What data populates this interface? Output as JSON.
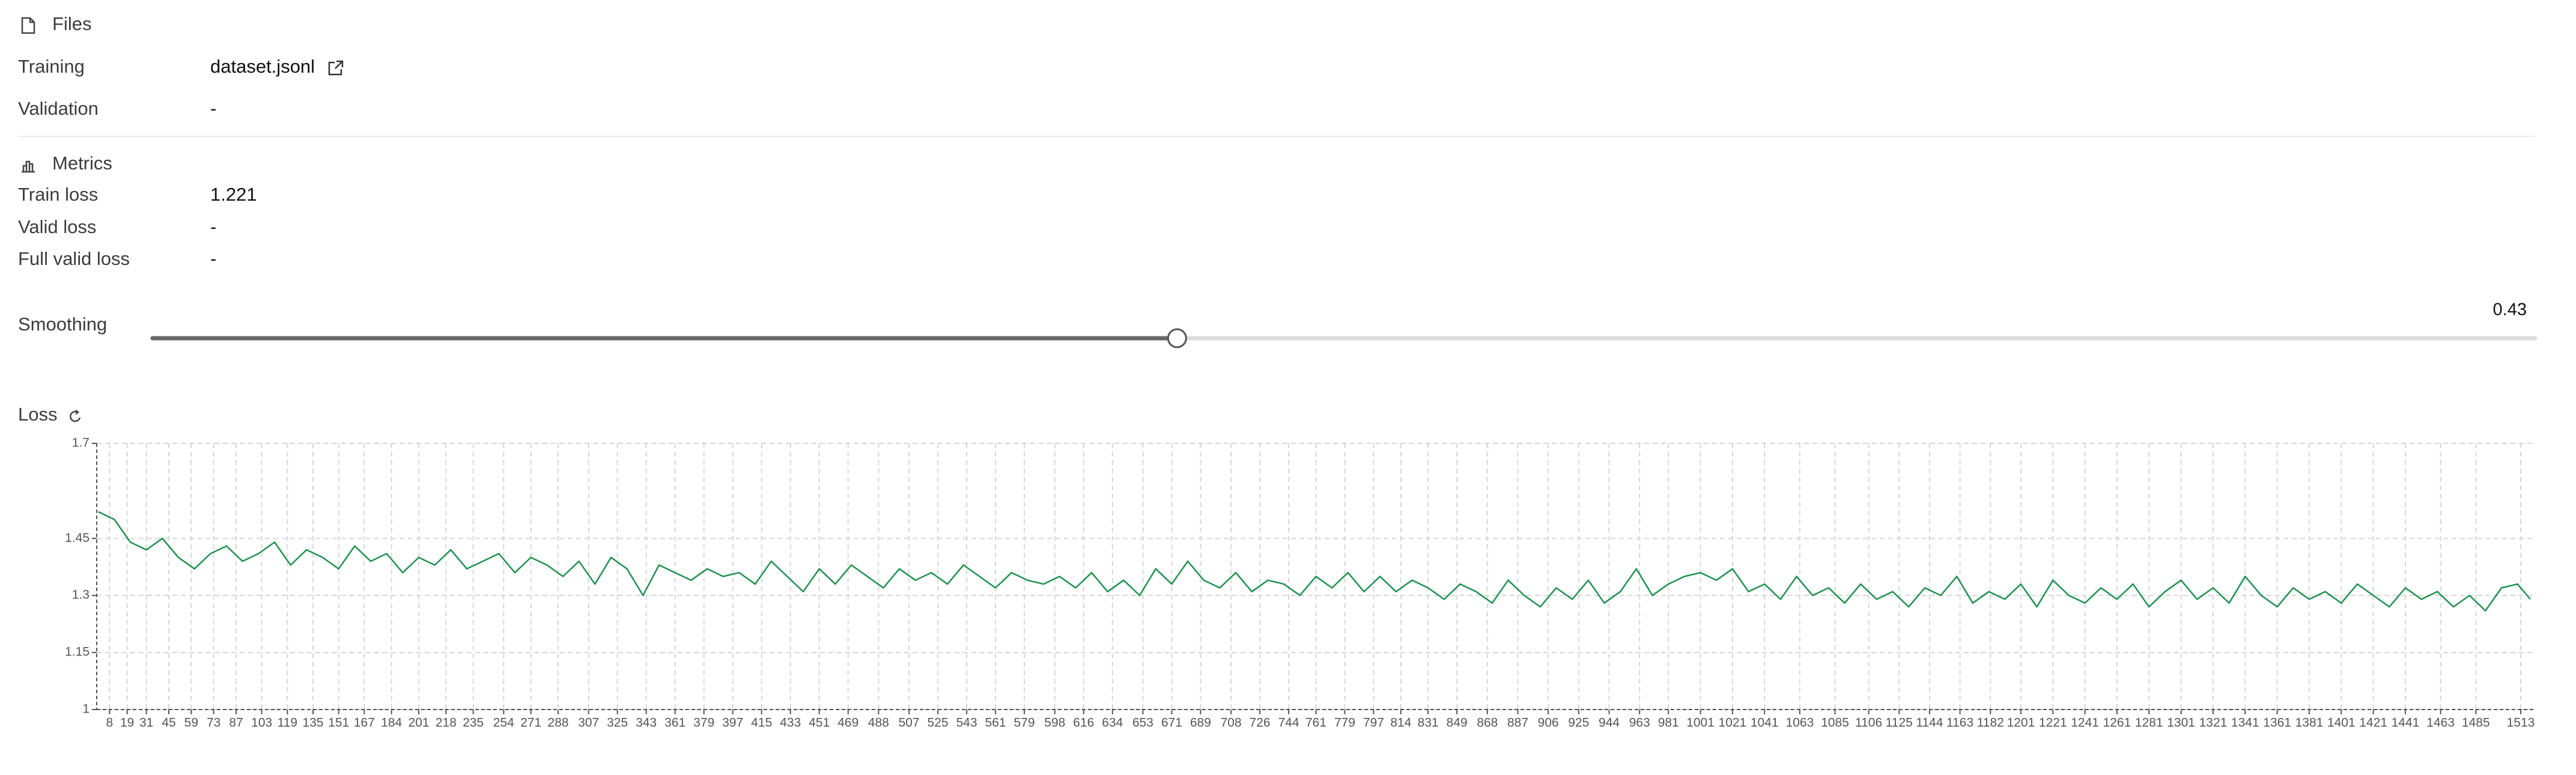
{
  "files": {
    "title": "Files",
    "rows": [
      {
        "label": "Training",
        "value": "dataset.jsonl"
      },
      {
        "label": "Validation",
        "value": "-"
      }
    ]
  },
  "metrics": {
    "title": "Metrics",
    "rows": [
      {
        "label": "Train loss",
        "value": "1.221"
      },
      {
        "label": "Valid loss",
        "value": "-"
      },
      {
        "label": "Full valid loss",
        "value": "-"
      }
    ]
  },
  "smoothing": {
    "label": "Smoothing",
    "value": 0.43
  },
  "chart_data": {
    "type": "line",
    "title": "Loss",
    "x": [
      1,
      11,
      21,
      31,
      41,
      51,
      61,
      71,
      81,
      91,
      101,
      111,
      121,
      131,
      141,
      151,
      161,
      171,
      181,
      191,
      201,
      211,
      221,
      231,
      241,
      251,
      261,
      271,
      281,
      291,
      301,
      311,
      321,
      331,
      341,
      351,
      361,
      371,
      381,
      391,
      401,
      411,
      421,
      431,
      441,
      451,
      461,
      471,
      481,
      491,
      501,
      511,
      521,
      531,
      541,
      551,
      561,
      571,
      581,
      591,
      601,
      611,
      621,
      631,
      641,
      651,
      661,
      671,
      681,
      691,
      701,
      711,
      721,
      731,
      741,
      751,
      761,
      771,
      781,
      791,
      801,
      811,
      821,
      831,
      841,
      851,
      861,
      871,
      881,
      891,
      901,
      911,
      921,
      931,
      941,
      951,
      961,
      971,
      981,
      991,
      1001,
      1011,
      1021,
      1031,
      1041,
      1051,
      1061,
      1071,
      1081,
      1091,
      1101,
      1111,
      1121,
      1131,
      1141,
      1151,
      1161,
      1171,
      1181,
      1191,
      1201,
      1211,
      1221,
      1231,
      1241,
      1251,
      1261,
      1271,
      1281,
      1291,
      1301,
      1311,
      1321,
      1331,
      1341,
      1351,
      1361,
      1371,
      1381,
      1391,
      1401,
      1411,
      1421,
      1431,
      1441,
      1451,
      1461,
      1471,
      1481,
      1491,
      1501,
      1511,
      1519
    ],
    "series": [
      {
        "color": "#1e9150",
        "values": [
          1.52,
          1.5,
          1.44,
          1.42,
          1.45,
          1.4,
          1.37,
          1.41,
          1.43,
          1.39,
          1.41,
          1.44,
          1.38,
          1.42,
          1.4,
          1.37,
          1.43,
          1.39,
          1.41,
          1.36,
          1.4,
          1.38,
          1.42,
          1.37,
          1.39,
          1.41,
          1.36,
          1.4,
          1.38,
          1.35,
          1.39,
          1.33,
          1.4,
          1.37,
          1.3,
          1.38,
          1.36,
          1.34,
          1.37,
          1.35,
          1.36,
          1.33,
          1.39,
          1.35,
          1.31,
          1.37,
          1.33,
          1.38,
          1.35,
          1.32,
          1.37,
          1.34,
          1.36,
          1.33,
          1.38,
          1.35,
          1.32,
          1.36,
          1.34,
          1.33,
          1.35,
          1.32,
          1.36,
          1.31,
          1.34,
          1.3,
          1.37,
          1.33,
          1.39,
          1.34,
          1.32,
          1.36,
          1.31,
          1.34,
          1.33,
          1.3,
          1.35,
          1.32,
          1.36,
          1.31,
          1.35,
          1.31,
          1.34,
          1.32,
          1.29,
          1.33,
          1.31,
          1.28,
          1.34,
          1.3,
          1.27,
          1.32,
          1.29,
          1.34,
          1.28,
          1.31,
          1.37,
          1.3,
          1.33,
          1.35,
          1.36,
          1.34,
          1.37,
          1.31,
          1.33,
          1.29,
          1.35,
          1.3,
          1.32,
          1.28,
          1.33,
          1.29,
          1.31,
          1.27,
          1.32,
          1.3,
          1.35,
          1.28,
          1.31,
          1.29,
          1.33,
          1.27,
          1.34,
          1.3,
          1.28,
          1.32,
          1.29,
          1.33,
          1.27,
          1.31,
          1.34,
          1.29,
          1.32,
          1.28,
          1.35,
          1.3,
          1.27,
          1.32,
          1.29,
          1.31,
          1.28,
          1.33,
          1.3,
          1.27,
          1.32,
          1.29,
          1.31,
          1.27,
          1.3,
          1.26,
          1.32,
          1.33,
          1.29
        ]
      }
    ],
    "xlim": [
      0,
      1522
    ],
    "ylim": [
      1,
      1.7
    ],
    "xticks": [
      8,
      19,
      31,
      45,
      59,
      73,
      87,
      103,
      119,
      135,
      151,
      167,
      184,
      201,
      218,
      235,
      254,
      271,
      288,
      307,
      325,
      343,
      361,
      379,
      397,
      415,
      433,
      451,
      469,
      488,
      507,
      525,
      543,
      561,
      579,
      598,
      616,
      634,
      653,
      671,
      689,
      708,
      726,
      744,
      761,
      779,
      797,
      814,
      831,
      849,
      868,
      887,
      906,
      925,
      944,
      963,
      981,
      1001,
      1021,
      1041,
      1063,
      1085,
      1106,
      1125,
      1144,
      1163,
      1182,
      1201,
      1221,
      1241,
      1261,
      1281,
      1301,
      1321,
      1341,
      1361,
      1381,
      1401,
      1421,
      1441,
      1463,
      1485,
      1513
    ],
    "yticks": [
      1,
      1.15,
      1.3,
      1.45,
      1.7
    ],
    "grid": true
  }
}
